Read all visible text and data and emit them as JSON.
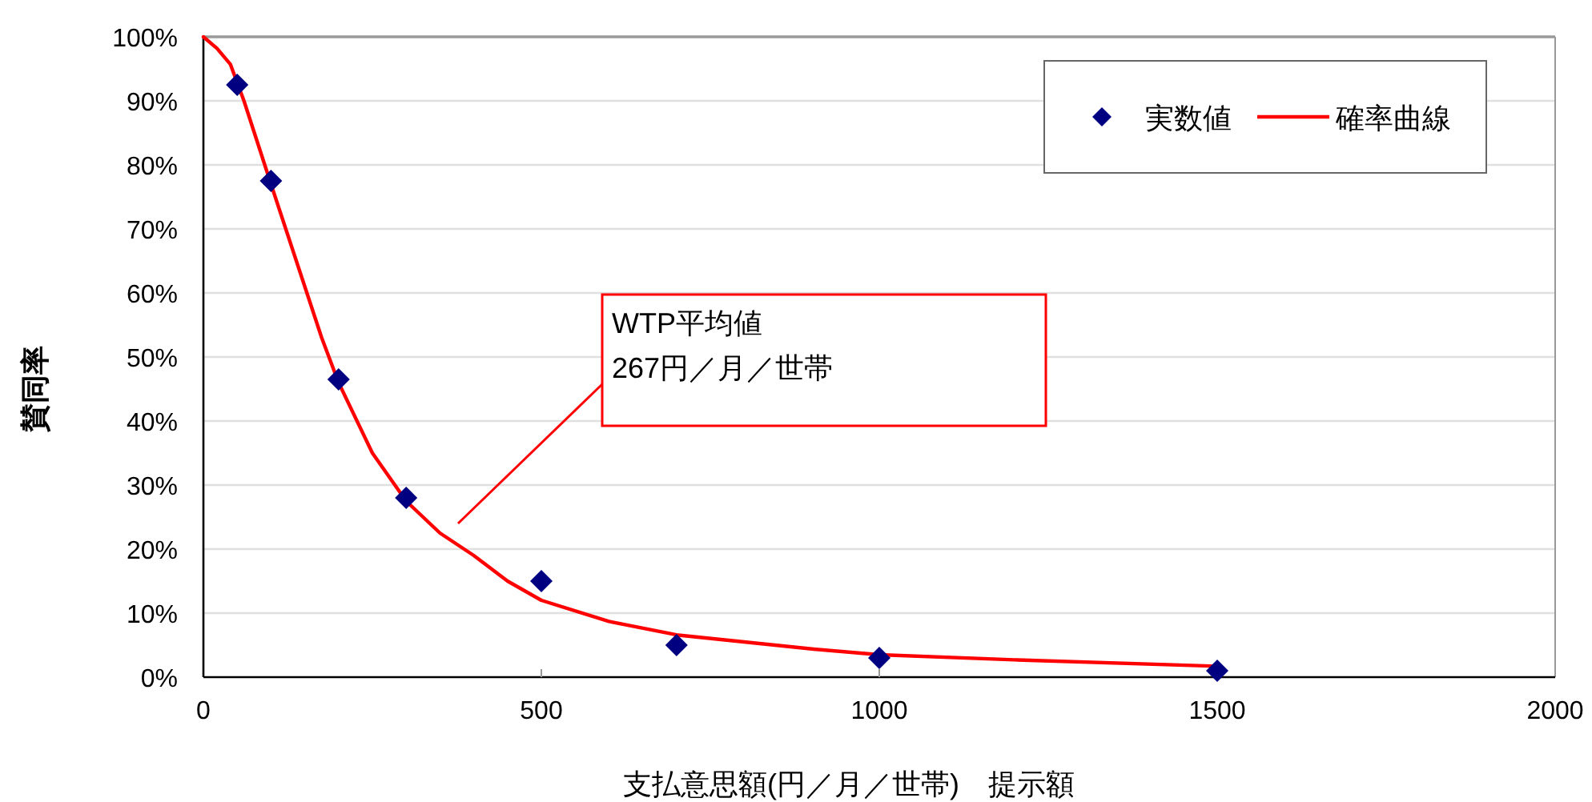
{
  "chart_data": {
    "type": "scatter",
    "xlabel": "支払意思額(円／月／世帯)　提示額",
    "ylabel": "賛同率",
    "xlim": [
      0,
      2000
    ],
    "xticks": [
      0,
      500,
      1000,
      1500,
      2000
    ],
    "ylim": [
      0,
      100
    ],
    "yticks": [
      {
        "value": 0,
        "label": "0%"
      },
      {
        "value": 10,
        "label": "10%"
      },
      {
        "value": 20,
        "label": "20%"
      },
      {
        "value": 30,
        "label": "30%"
      },
      {
        "value": 40,
        "label": "40%"
      },
      {
        "value": 50,
        "label": "50%"
      },
      {
        "value": 60,
        "label": "60%"
      },
      {
        "value": 70,
        "label": "70%"
      },
      {
        "value": 80,
        "label": "80%"
      },
      {
        "value": 90,
        "label": "90%"
      },
      {
        "value": 100,
        "label": "100%"
      }
    ],
    "grid": "y",
    "legend": "top right",
    "marker": "diamond",
    "series": [
      {
        "name": "実数値",
        "color": "#000080",
        "x": [
          50,
          100,
          200,
          300,
          500,
          700,
          1000,
          1500
        ],
        "values": [
          92.5,
          77.5,
          46.5,
          28,
          15,
          5,
          3,
          1
        ]
      },
      {
        "name": "確率曲線",
        "type": "line",
        "color": "#ff0000",
        "marker": "none",
        "line_style": "solid",
        "x": [
          0,
          20,
          40,
          60,
          80,
          100,
          125,
          150,
          175,
          200,
          250,
          300,
          350,
          400,
          450,
          500,
          600,
          700,
          800,
          900,
          1000,
          1200,
          1500
        ],
        "values": [
          100,
          98.2,
          95.7,
          90,
          83.5,
          77,
          69,
          61,
          53,
          46,
          35,
          27.5,
          22.5,
          19,
          15,
          12,
          8.7,
          6.6,
          5.5,
          4.4,
          3.5,
          2.7,
          1.7
        ]
      }
    ],
    "annotations": [
      "WTP平均値\n267円／月／世帯"
    ]
  }
}
